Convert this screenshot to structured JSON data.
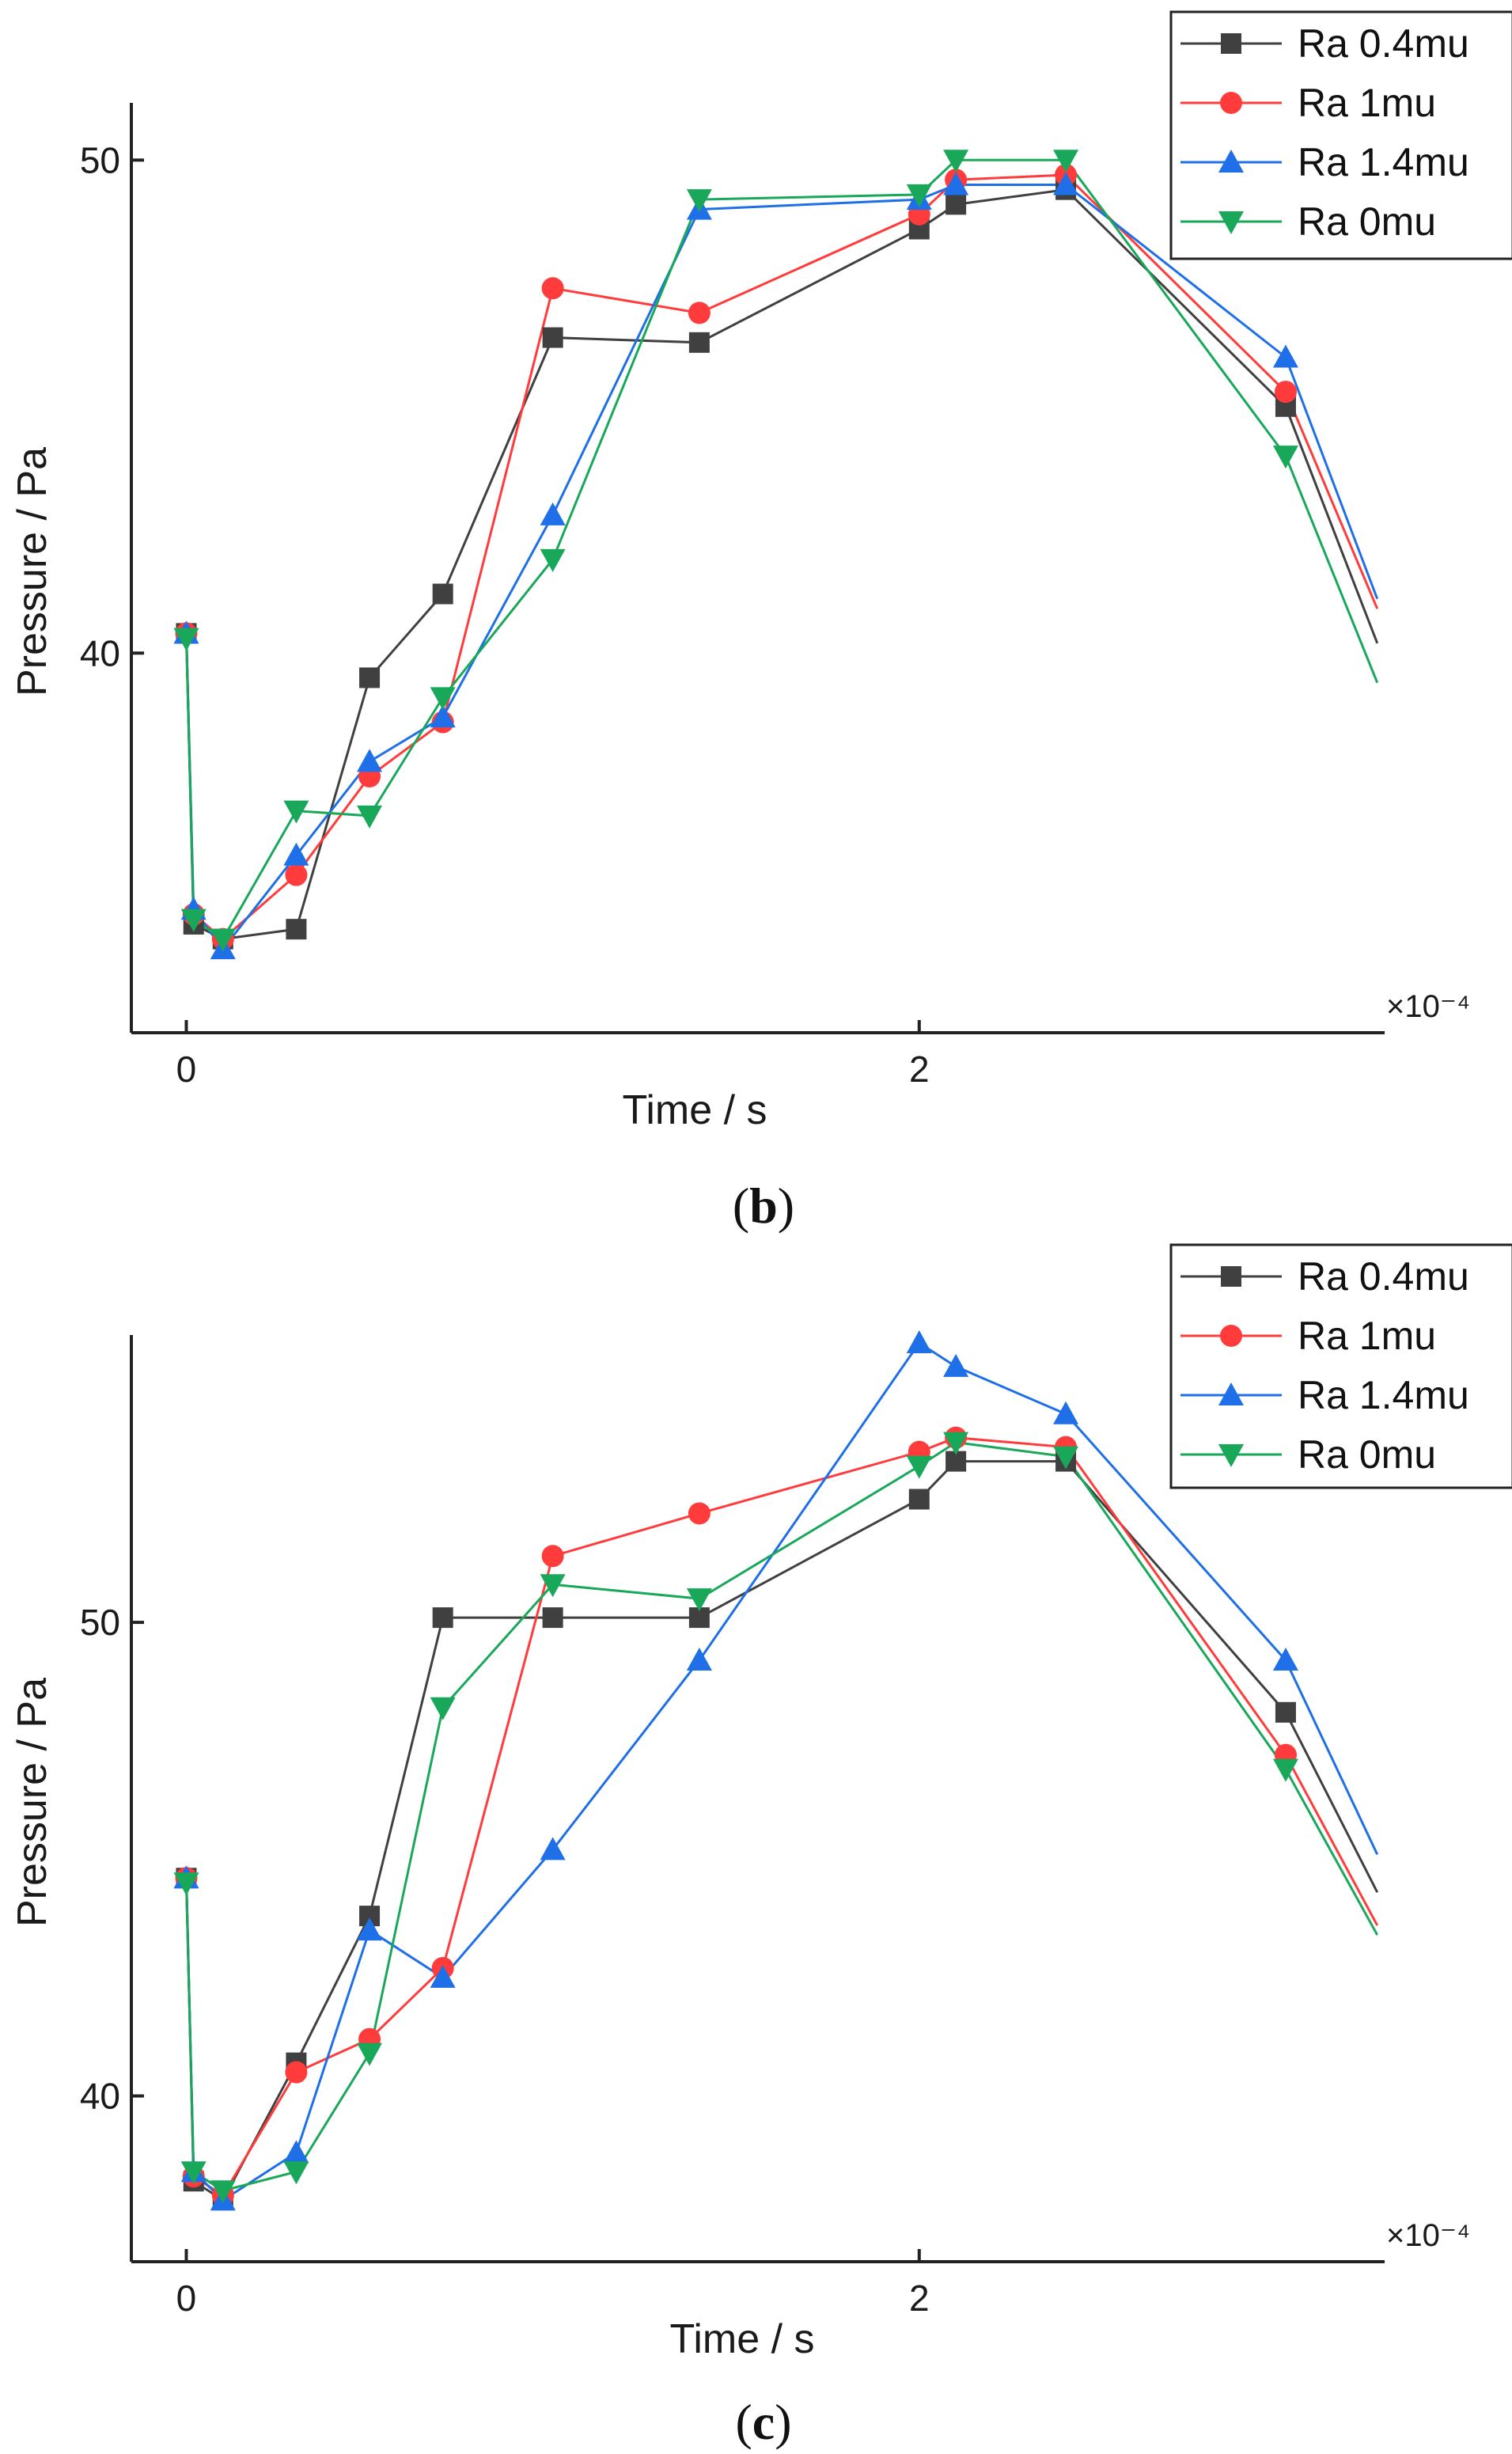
{
  "chart_data": [
    {
      "type": "line",
      "panel_label": "b",
      "xlabel": "Time / s",
      "ylabel": "Pressure / Pa",
      "x_multiplier": "×10⁻⁴",
      "xticks": [
        {
          "value": 0,
          "label": "0"
        },
        {
          "value": 2,
          "label": "2"
        }
      ],
      "yticks": [
        {
          "value": 40,
          "label": "40"
        },
        {
          "value": 50,
          "label": "50"
        }
      ],
      "xlim": [
        -0.15,
        3.27
      ],
      "ylim": [
        32.3,
        51.0
      ],
      "legend_position": "top-right",
      "series": [
        {
          "name": "Ra 0.4mu",
          "color": "#404040",
          "marker": "square",
          "x": [
            0.0,
            0.02,
            0.1,
            0.3,
            0.5,
            0.7,
            1.0,
            1.4,
            2.0,
            2.1,
            2.4,
            3.0,
            3.25
          ],
          "y": [
            40.4,
            34.5,
            34.2,
            34.4,
            39.5,
            41.2,
            46.4,
            46.3,
            48.6,
            49.1,
            49.4,
            45.0,
            40.2
          ]
        },
        {
          "name": "Ra 1mu",
          "color": "#ff3b3b",
          "marker": "circle",
          "x": [
            0.0,
            0.02,
            0.1,
            0.3,
            0.5,
            0.7,
            1.0,
            1.4,
            2.0,
            2.1,
            2.4,
            3.0,
            3.25
          ],
          "y": [
            40.4,
            34.7,
            34.2,
            35.5,
            37.5,
            38.6,
            47.4,
            46.9,
            48.9,
            49.6,
            49.7,
            45.3,
            40.9
          ]
        },
        {
          "name": "Ra 1.4mu",
          "color": "#1e6fe8",
          "marker": "triangle-up",
          "x": [
            0.0,
            0.02,
            0.1,
            0.3,
            0.5,
            0.7,
            1.0,
            1.4,
            2.0,
            2.1,
            2.4,
            3.0,
            3.25
          ],
          "y": [
            40.4,
            34.8,
            34.0,
            35.9,
            37.8,
            38.7,
            42.8,
            49.0,
            49.2,
            49.5,
            49.5,
            46.0,
            41.1
          ]
        },
        {
          "name": "Ra 0mu",
          "color": "#19a85a",
          "marker": "triangle-down",
          "x": [
            0.0,
            0.02,
            0.1,
            0.3,
            0.5,
            0.7,
            1.0,
            1.4,
            2.0,
            2.1,
            2.4,
            3.0,
            3.25
          ],
          "y": [
            40.3,
            34.6,
            34.2,
            36.8,
            36.7,
            39.1,
            41.9,
            49.2,
            49.3,
            50.0,
            50.0,
            44.0,
            39.4
          ]
        }
      ]
    },
    {
      "type": "line",
      "panel_label": "c",
      "xlabel": "Time / s",
      "ylabel": "Pressure / Pa",
      "x_multiplier": "×10⁻⁴",
      "xticks": [
        {
          "value": 0,
          "label": "0"
        },
        {
          "value": 2,
          "label": "2"
        }
      ],
      "yticks": [
        {
          "value": 40,
          "label": "40"
        },
        {
          "value": 50,
          "label": "50"
        }
      ],
      "xlim": [
        -0.15,
        3.27
      ],
      "ylim": [
        36.5,
        55.9
      ],
      "legend_position": "top-right",
      "series": [
        {
          "name": "Ra 0.4mu",
          "color": "#404040",
          "marker": "square",
          "x": [
            0.0,
            0.02,
            0.1,
            0.3,
            0.5,
            0.7,
            1.0,
            1.4,
            2.0,
            2.1,
            2.4,
            3.0,
            3.25
          ],
          "y": [
            44.6,
            38.2,
            37.8,
            40.7,
            43.8,
            50.1,
            50.1,
            50.1,
            52.6,
            53.4,
            53.4,
            48.1,
            44.3
          ]
        },
        {
          "name": "Ra 1mu",
          "color": "#ff3b3b",
          "marker": "circle",
          "x": [
            0.0,
            0.02,
            0.1,
            0.3,
            0.5,
            0.7,
            1.0,
            1.4,
            2.0,
            2.1,
            2.4,
            3.0,
            3.25
          ],
          "y": [
            44.6,
            38.3,
            37.9,
            40.5,
            41.2,
            42.7,
            51.4,
            52.3,
            53.6,
            53.9,
            53.7,
            47.2,
            43.6
          ]
        },
        {
          "name": "Ra 1.4mu",
          "color": "#1e6fe8",
          "marker": "triangle-up",
          "x": [
            0.0,
            0.02,
            0.1,
            0.3,
            0.5,
            0.7,
            1.0,
            1.4,
            2.0,
            2.1,
            2.4,
            3.0,
            3.25
          ],
          "y": [
            44.6,
            38.4,
            37.8,
            38.8,
            43.5,
            42.5,
            45.2,
            49.2,
            55.9,
            55.4,
            54.4,
            49.2,
            45.1
          ]
        },
        {
          "name": "Ra 0mu",
          "color": "#19a85a",
          "marker": "triangle-down",
          "x": [
            0.0,
            0.02,
            0.1,
            0.3,
            0.5,
            0.7,
            1.0,
            1.4,
            2.0,
            2.1,
            2.4,
            3.0,
            3.25
          ],
          "y": [
            44.5,
            38.4,
            38.0,
            38.4,
            40.9,
            48.2,
            50.8,
            50.5,
            53.3,
            53.8,
            53.5,
            46.9,
            43.4
          ]
        }
      ]
    }
  ]
}
